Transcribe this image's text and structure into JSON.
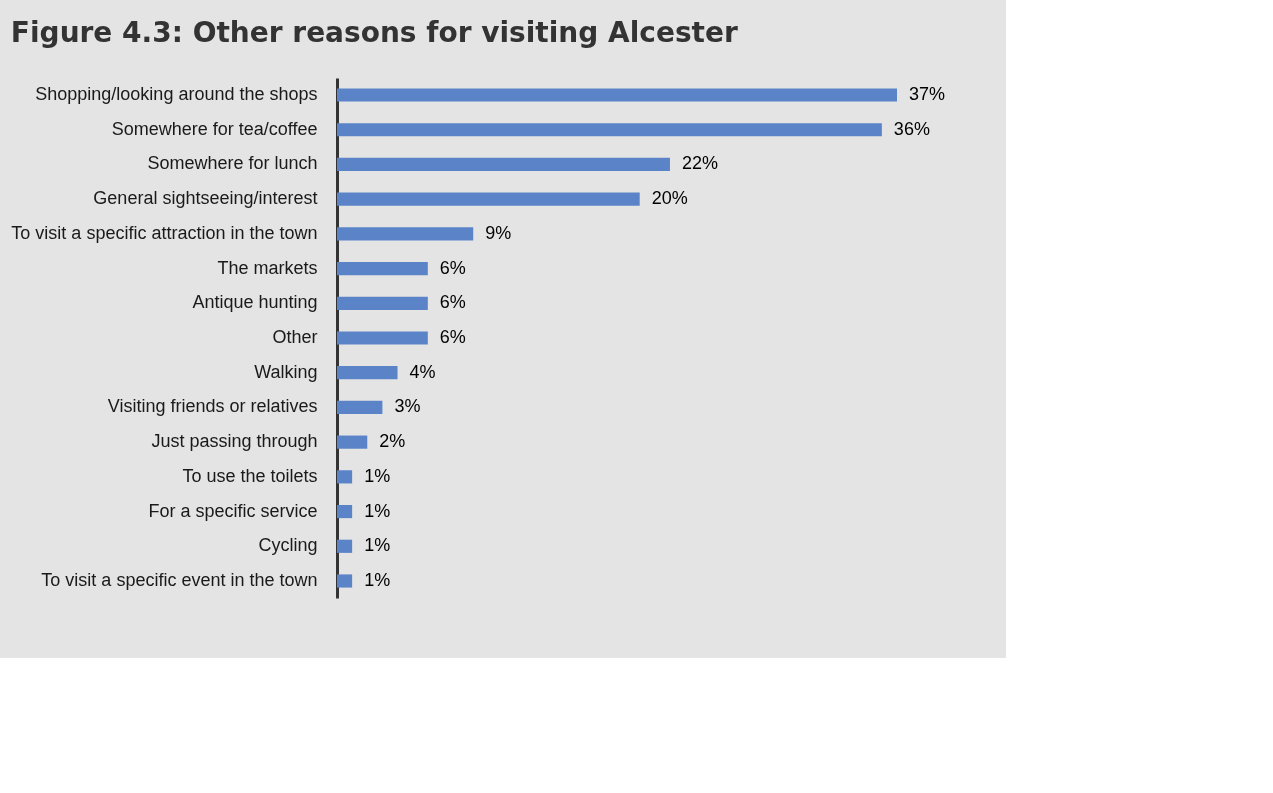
{
  "chart_data": {
    "type": "bar",
    "orientation": "horizontal",
    "title": "Figure 4.3: Other reasons for visiting Alcester",
    "categories": [
      "Shopping/looking around the shops",
      "Somewhere for tea/coffee",
      "Somewhere for lunch",
      "General sightseeing/interest",
      "To visit a specific attraction in the town",
      "The markets",
      "Antique hunting",
      "Other",
      "Walking",
      "Visiting friends or relatives",
      "Just passing through",
      "To use the toilets",
      "For a specific service",
      "Cycling",
      "To visit a specific event in the town"
    ],
    "values": [
      37,
      36,
      22,
      20,
      9,
      6,
      6,
      6,
      4,
      3,
      2,
      1,
      1,
      1,
      1
    ],
    "value_labels": [
      "37%",
      "36%",
      "22%",
      "20%",
      "9%",
      "6%",
      "6%",
      "6%",
      "4%",
      "3%",
      "2%",
      "1%",
      "1%",
      "1%",
      "1%"
    ],
    "color": "#5b84c8"
  }
}
